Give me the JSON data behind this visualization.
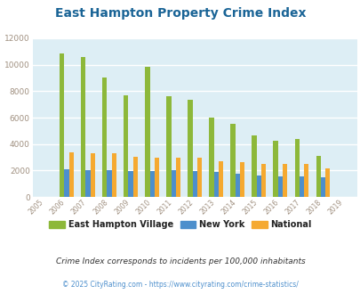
{
  "title": "East Hampton Property Crime Index",
  "title_color": "#1a6496",
  "years": [
    2005,
    2006,
    2007,
    2008,
    2009,
    2010,
    2011,
    2012,
    2013,
    2014,
    2015,
    2016,
    2017,
    2018,
    2019
  ],
  "east_hampton": [
    0,
    10850,
    10550,
    9050,
    7650,
    9850,
    7600,
    7350,
    6000,
    5500,
    4650,
    4250,
    4400,
    3100,
    0
  ],
  "new_york": [
    0,
    2100,
    2020,
    2050,
    1980,
    1980,
    2000,
    1970,
    1880,
    1730,
    1620,
    1560,
    1560,
    1490,
    0
  ],
  "national": [
    0,
    3350,
    3280,
    3280,
    3020,
    2980,
    2980,
    2950,
    2700,
    2640,
    2520,
    2480,
    2470,
    2180,
    0
  ],
  "bar_width": 0.22,
  "colors": {
    "east_hampton": "#8db83a",
    "new_york": "#4d8fcc",
    "national": "#f5a930"
  },
  "ylim": [
    0,
    12000
  ],
  "yticks": [
    0,
    2000,
    4000,
    6000,
    8000,
    10000,
    12000
  ],
  "bg_color": "#ddeef5",
  "grid_color": "#ffffff",
  "legend_labels": [
    "East Hampton Village",
    "New York",
    "National"
  ],
  "subtitle": "Crime Index corresponds to incidents per 100,000 inhabitants",
  "subtitle_color": "#333333",
  "footer": "© 2025 CityRating.com - https://www.cityrating.com/crime-statistics/",
  "footer_color": "#4d8fcc",
  "tick_color": "#a09080"
}
